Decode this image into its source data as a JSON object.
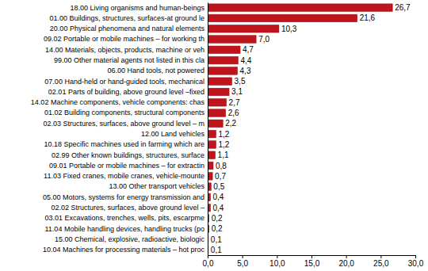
{
  "chart_data": {
    "type": "bar",
    "orientation": "horizontal",
    "data_labels": true,
    "grid": false,
    "color": "#c0141c",
    "categories": [
      "18.00 Living organisms and human-beings",
      "01.00 Buildings, structures, surfaces-at ground le",
      "20.00 Physical phenomena and natural elements",
      "09.02 Portable or mobile machines – for working th",
      "14.00 Materials, objects, products, machine or veh",
      "99.00 Other material agents not listed in this cla",
      "06.00 Hand tools, not powered",
      "07.00 Hand-held or hand-guided tools, mechanical",
      "02.01 Parts of building, above ground level –fixed",
      "14.02 Machine components, vehicle components: chas",
      "01.02 Building components, structural components",
      "02.03 Structures, surfaces, above ground level – m",
      "12.00 Land vehicles",
      "10.18 Specific machines used in farming which are",
      "02.99 Other known buildings, structures, surface",
      "09.01 Portable or mobile machines – for extractin",
      "11.03 Fixed cranes, mobile cranes, vehicle-mounte",
      "13.00 Other transport vehicles",
      "05.00 Motors, systems for energy transmission and",
      "02.02 Structures, surfaces, above ground level –",
      "03.01 Excavations, trenches, wells, pits, escarpme",
      "11.04 Mobile handling devices, handling trucks (po",
      "15.00 Chemical, explosive, radioactive, biologic",
      "10.04 Machines for processing materials – hot proc"
    ],
    "values": [
      26.7,
      21.6,
      10.3,
      7.0,
      4.7,
      4.4,
      4.3,
      3.5,
      3.1,
      2.7,
      2.6,
      2.2,
      1.2,
      1.2,
      1.1,
      0.8,
      0.7,
      0.5,
      0.4,
      0.4,
      0.2,
      0.2,
      0.1,
      0.1
    ],
    "value_labels": [
      "26,7",
      "21,6",
      "10,3",
      "7,0",
      "4,7",
      "4,4",
      "4,3",
      "3,5",
      "3,1",
      "2,7",
      "2,6",
      "2,2",
      "1,2",
      "1,2",
      "1,1",
      "0,8",
      "0,7",
      "0,5",
      "0,4",
      "0,4",
      "0,2",
      "0,2",
      "0,1",
      "0,1"
    ],
    "xlim": [
      0,
      30
    ],
    "xticks": [
      {
        "value": 0,
        "label": "0,0"
      },
      {
        "value": 5,
        "label": "5,0"
      },
      {
        "value": 10,
        "label": "10,0"
      },
      {
        "value": 15,
        "label": "15,0"
      },
      {
        "value": 20,
        "label": "20,0"
      },
      {
        "value": 25,
        "label": "25,0"
      },
      {
        "value": 30,
        "label": "30,0"
      }
    ]
  }
}
